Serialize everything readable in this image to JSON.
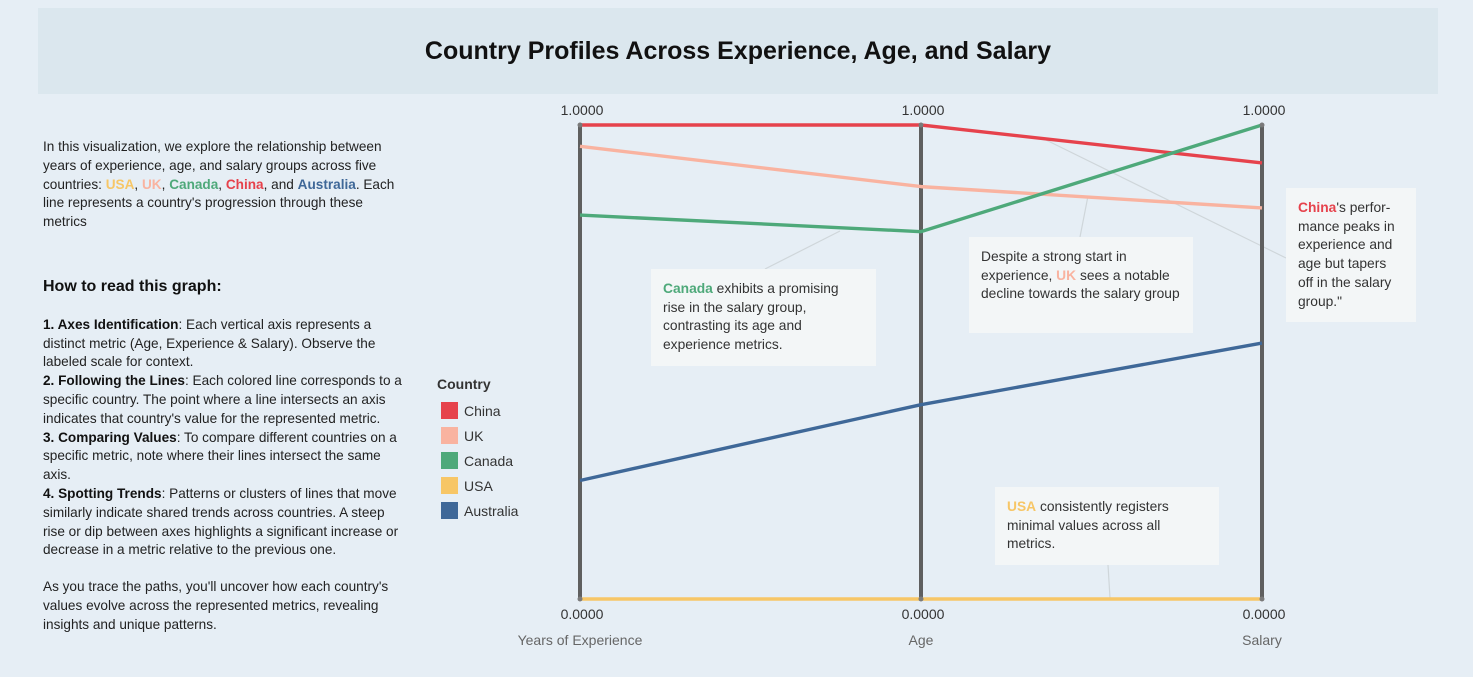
{
  "header": {
    "title": "Country Profiles Across Experience, Age, and Salary"
  },
  "intro": {
    "before": "In this visualization, we explore the relationship between years of experience, age, and salary groups across five countries: ",
    "usa": "USA",
    "sep1": ", ",
    "uk": "UK",
    "sep2": ", ",
    "canada": "Canada",
    "sep3": ", ",
    "china": "China",
    "sep4": ", and ",
    "australia": "Australia",
    "after": ". Each line represents a country's progression through these metrics"
  },
  "howto": {
    "title": "How to read this graph:",
    "steps": [
      {
        "title": "1. Axes Identification",
        "text": ": Each vertical axis represents a distinct metric (Age, Experience & Salary). Observe the labeled scale for context."
      },
      {
        "title": "2. Following the Lines",
        "text": ": Each colored line corresponds to a specific country. The point where a line intersects an axis indicates that country's value for the represented metric."
      },
      {
        "title": "3. Comparing Values",
        "text": ": To compare different countries on a specific metric, note where their lines intersect the same axis."
      },
      {
        "title": "4. Spotting Trends",
        "text": ": Patterns or clusters of lines that move similarly indicate shared trends across countries. A steep rise or dip between axes highlights a significant increase or decrease in a metric relative to the previous one."
      }
    ],
    "outro": "As you trace the paths, you'll uncover how each country's values evolve across the represented metrics, revealing insights and unique patterns."
  },
  "legend": {
    "title": "Country"
  },
  "annotations": {
    "canada": {
      "name": "Canada",
      "text": " exhibits a promising rise in the salary group, contrasting its age and experience metrics."
    },
    "uk": {
      "before": "Despite a strong start in experience, ",
      "name": "UK",
      "after": " sees a notable decline towards the salary group"
    },
    "china": {
      "name": "China",
      "text": "'s perfor-mance peaks in experience and age but tapers off in the salary group.\""
    },
    "usa": {
      "name": "USA",
      "text": " consistently registers minimal values across all metrics."
    }
  },
  "chart_data": {
    "type": "parallel-coordinates",
    "dimensions": [
      "Years of Experience",
      "Age",
      "Salary"
    ],
    "axis_max_label": "1.0000",
    "axis_min_label": "0.0000",
    "ylim": [
      0,
      1
    ],
    "legend_position": "left",
    "series": [
      {
        "name": "China",
        "color": "#e6424c",
        "values": [
          1.0,
          1.0,
          0.92
        ]
      },
      {
        "name": "UK",
        "color": "#f9b3a0",
        "values": [
          0.955,
          0.87,
          0.825
        ]
      },
      {
        "name": "Canada",
        "color": "#4ea97a",
        "values": [
          0.81,
          0.775,
          1.0
        ]
      },
      {
        "name": "USA",
        "color": "#f7c666",
        "values": [
          0.0,
          0.0,
          0.0
        ]
      },
      {
        "name": "Australia",
        "color": "#3f6898",
        "values": [
          0.25,
          0.41,
          0.54
        ]
      }
    ]
  }
}
